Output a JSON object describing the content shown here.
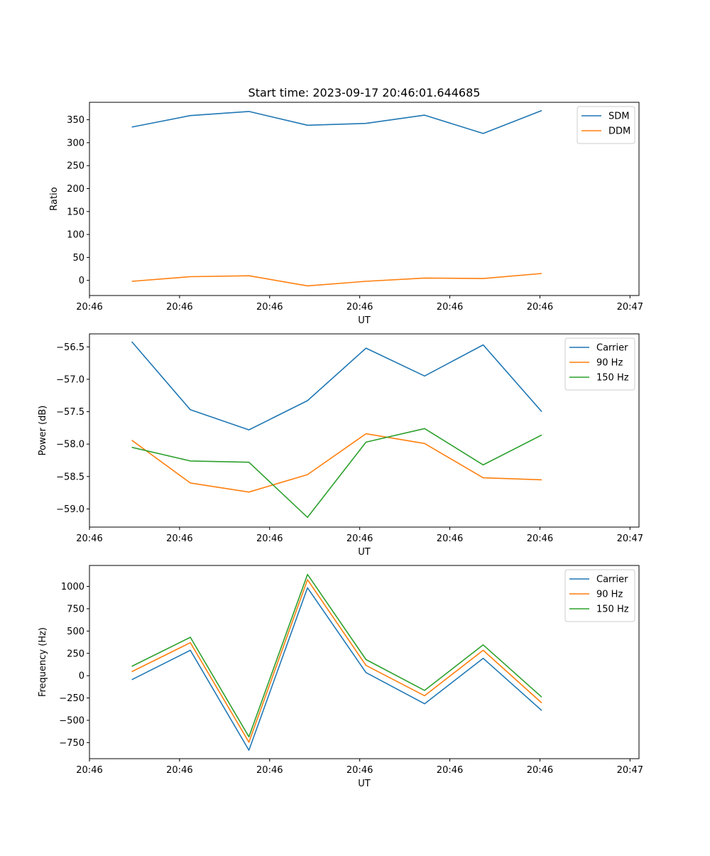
{
  "figure_title": "Start time: 2023-09-17 20:46:01.644685",
  "colors": {
    "blue": "#1f77b4",
    "orange": "#ff7f0e",
    "green": "#2ca02c"
  },
  "chart_data": [
    {
      "type": "line",
      "title": "Start time: 2023-09-17 20:46:01.644685",
      "xlabel": "UT",
      "ylabel": "Ratio",
      "x": [
        0.0,
        0.65,
        1.3,
        1.95,
        2.6,
        3.25,
        3.9,
        4.55
      ],
      "xlim": [
        -0.47,
        5.63
      ],
      "x_ticks": [
        -0.47,
        0.53,
        1.53,
        2.53,
        3.53,
        4.53,
        5.53
      ],
      "x_tick_labels": [
        "20:46",
        "20:46",
        "20:46",
        "20:46",
        "20:46",
        "20:46",
        "20:47"
      ],
      "ylim": [
        -33,
        388
      ],
      "y_ticks": [
        0,
        50,
        100,
        150,
        200,
        250,
        300,
        350
      ],
      "y_tick_labels": [
        "0",
        "50",
        "100",
        "150",
        "200",
        "250",
        "300",
        "350"
      ],
      "legend_position": "top-right",
      "series": [
        {
          "name": "SDM",
          "color": "#1f77b4",
          "values": [
            334,
            359,
            368,
            338,
            342,
            360,
            320,
            370
          ]
        },
        {
          "name": "DDM",
          "color": "#ff7f0e",
          "values": [
            -2,
            8,
            10,
            -12,
            -2,
            5,
            4,
            15
          ]
        }
      ]
    },
    {
      "type": "line",
      "title": "",
      "xlabel": "UT",
      "ylabel": "Power (dB)",
      "x": [
        0.0,
        0.65,
        1.3,
        1.95,
        2.6,
        3.25,
        3.9,
        4.55
      ],
      "xlim": [
        -0.47,
        5.63
      ],
      "x_ticks": [
        -0.47,
        0.53,
        1.53,
        2.53,
        3.53,
        4.53,
        5.53
      ],
      "x_tick_labels": [
        "20:46",
        "20:46",
        "20:46",
        "20:46",
        "20:46",
        "20:46",
        "20:47"
      ],
      "ylim": [
        -59.28,
        -56.3
      ],
      "y_ticks": [
        -59.0,
        -58.5,
        -58.0,
        -57.5,
        -57.0,
        -56.5
      ],
      "y_tick_labels": [
        "−59.0",
        "−58.5",
        "−58.0",
        "−57.5",
        "−57.0",
        "−56.5"
      ],
      "legend_position": "top-right",
      "series": [
        {
          "name": "Carrier",
          "color": "#1f77b4",
          "values": [
            -56.42,
            -57.47,
            -57.78,
            -57.33,
            -56.52,
            -56.95,
            -56.47,
            -57.5
          ]
        },
        {
          "name": "90 Hz",
          "color": "#ff7f0e",
          "values": [
            -57.94,
            -58.6,
            -58.74,
            -58.47,
            -57.84,
            -57.99,
            -58.52,
            -58.55
          ]
        },
        {
          "name": "150 Hz",
          "color": "#2ca02c",
          "values": [
            -58.05,
            -58.26,
            -58.28,
            -59.13,
            -57.97,
            -57.76,
            -58.32,
            -57.86
          ]
        }
      ]
    },
    {
      "type": "line",
      "title": "",
      "xlabel": "UT",
      "ylabel": "Frequency (Hz)",
      "x": [
        0.0,
        0.65,
        1.3,
        1.95,
        2.6,
        3.25,
        3.9,
        4.55
      ],
      "xlim": [
        -0.47,
        5.63
      ],
      "x_ticks": [
        -0.47,
        0.53,
        1.53,
        2.53,
        3.53,
        4.53,
        5.53
      ],
      "x_tick_labels": [
        "20:46",
        "20:46",
        "20:46",
        "20:46",
        "20:46",
        "20:46",
        "20:47"
      ],
      "ylim": [
        -930,
        1235
      ],
      "y_ticks": [
        -750,
        -500,
        -250,
        0,
        250,
        500,
        750,
        1000
      ],
      "y_tick_labels": [
        "−750",
        "−500",
        "−250",
        "0",
        "250",
        "500",
        "750",
        "1000"
      ],
      "legend_position": "top-right",
      "series": [
        {
          "name": "Carrier",
          "color": "#1f77b4",
          "values": [
            -45,
            285,
            -835,
            985,
            35,
            -315,
            195,
            -390
          ]
        },
        {
          "name": "90 Hz",
          "color": "#ff7f0e",
          "values": [
            45,
            370,
            -745,
            1075,
            115,
            -225,
            285,
            -305
          ]
        },
        {
          "name": "150 Hz",
          "color": "#2ca02c",
          "values": [
            105,
            430,
            -685,
            1135,
            180,
            -165,
            345,
            -240
          ]
        }
      ]
    }
  ]
}
